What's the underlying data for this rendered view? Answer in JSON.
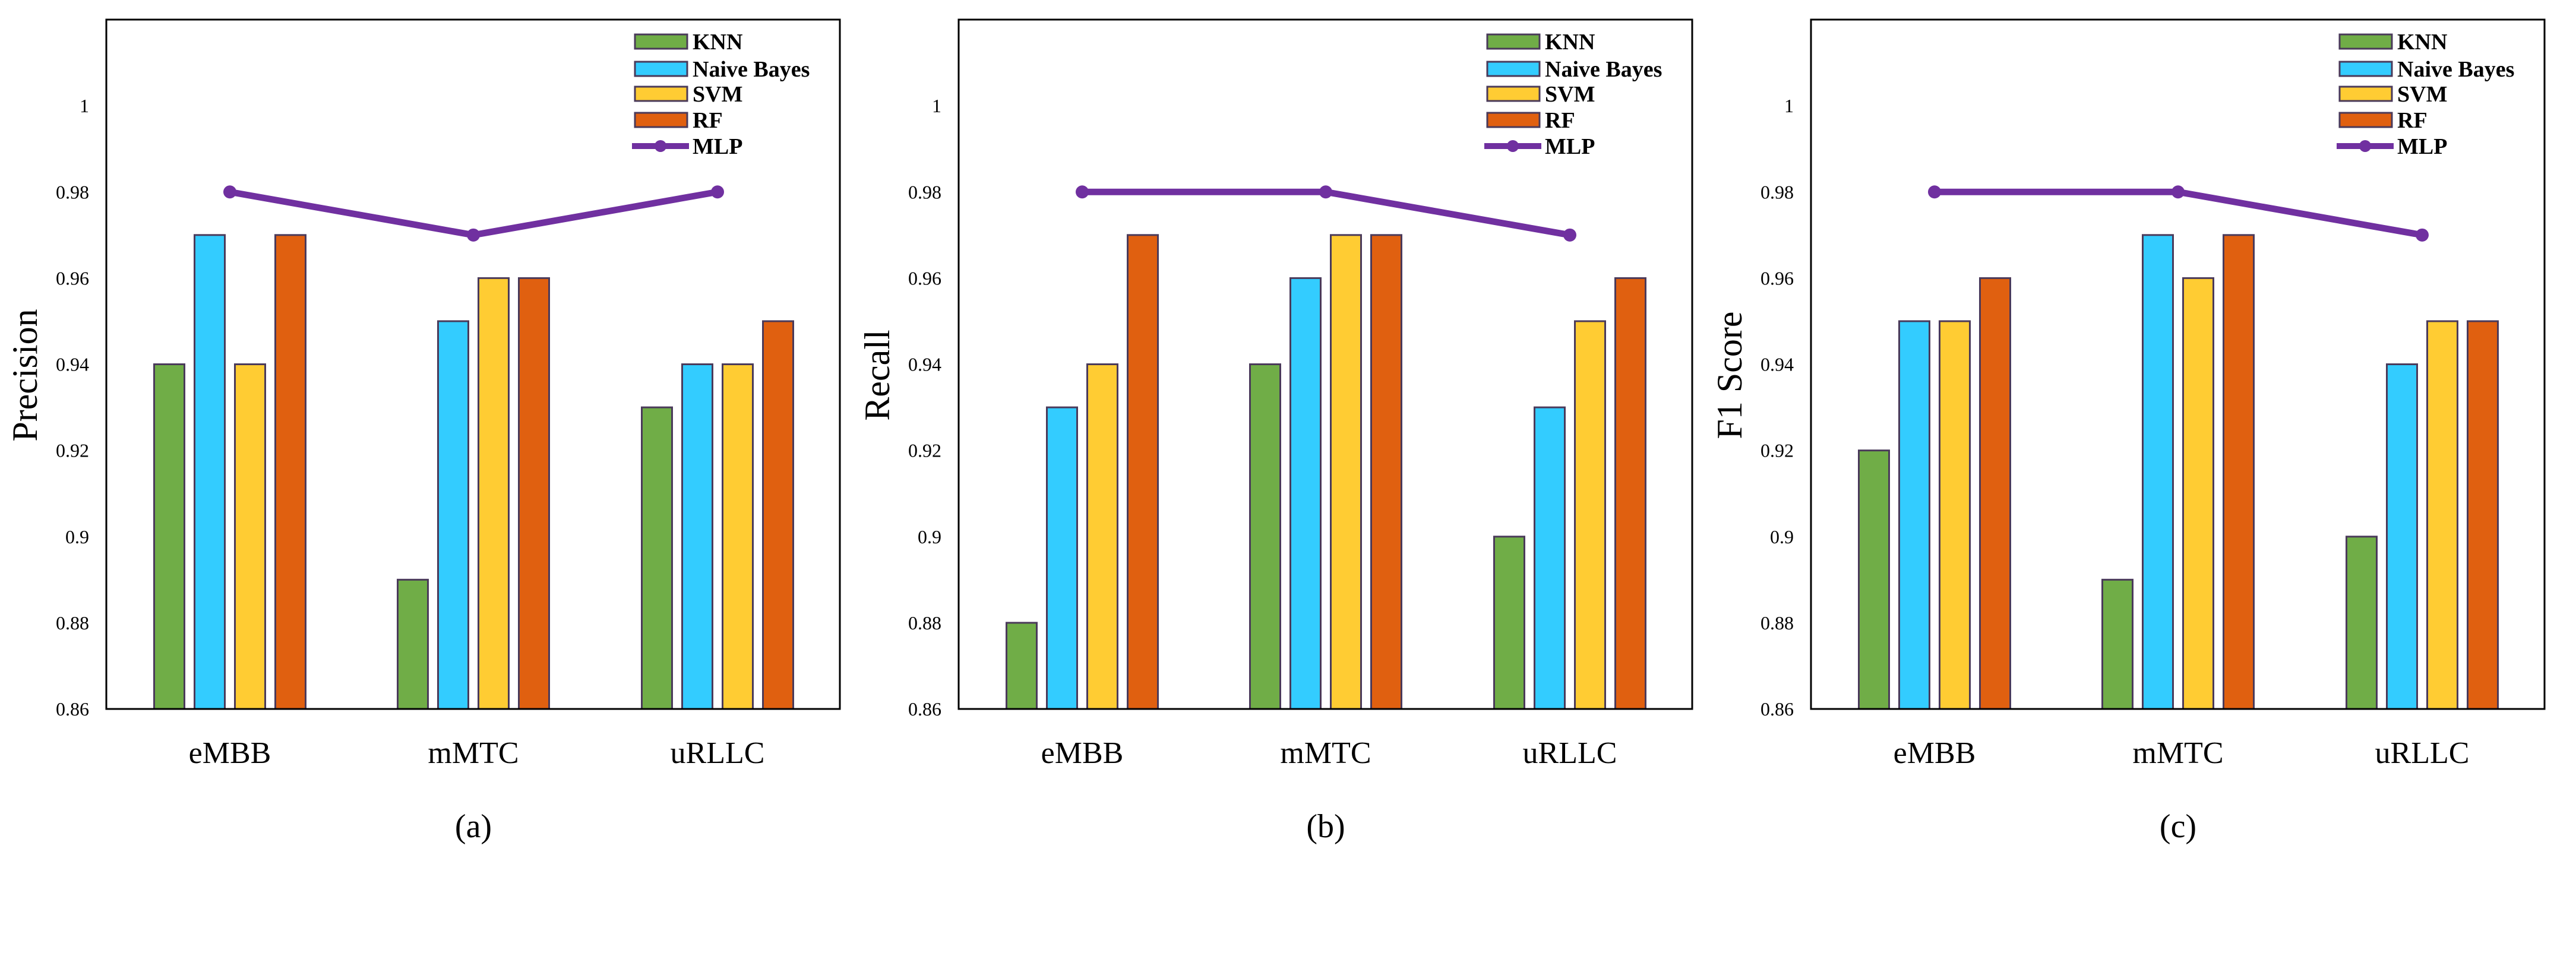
{
  "chart_data": [
    {
      "type": "bar",
      "panel_label": "(a)",
      "ylabel": "Precision",
      "xlabel": "",
      "ylim": [
        0.86,
        1.02
      ],
      "yticks": [
        "0.86",
        "0.88",
        "0.9",
        "0.92",
        "0.94",
        "0.96",
        "0.98",
        "1"
      ],
      "categories": [
        "eMBB",
        "mMTC",
        "uRLLC"
      ],
      "series": [
        {
          "name": "KNN",
          "kind": "bar",
          "values": [
            0.94,
            0.89,
            0.93
          ]
        },
        {
          "name": "Naive Bayes",
          "kind": "bar",
          "values": [
            0.97,
            0.95,
            0.94
          ]
        },
        {
          "name": "SVM",
          "kind": "bar",
          "values": [
            0.94,
            0.96,
            0.94
          ]
        },
        {
          "name": "RF",
          "kind": "bar",
          "values": [
            0.97,
            0.96,
            0.95
          ]
        },
        {
          "name": "MLP",
          "kind": "line",
          "values": [
            0.98,
            0.97,
            0.98
          ]
        }
      ],
      "legend": "top-right",
      "grid": false
    },
    {
      "type": "bar",
      "panel_label": "(b)",
      "ylabel": "Recall",
      "xlabel": "",
      "ylim": [
        0.86,
        1.02
      ],
      "yticks": [
        "0.86",
        "0.88",
        "0.9",
        "0.92",
        "0.94",
        "0.96",
        "0.98",
        "1"
      ],
      "categories": [
        "eMBB",
        "mMTC",
        "uRLLC"
      ],
      "series": [
        {
          "name": "KNN",
          "kind": "bar",
          "values": [
            0.88,
            0.94,
            0.9
          ]
        },
        {
          "name": "Naive Bayes",
          "kind": "bar",
          "values": [
            0.93,
            0.96,
            0.93
          ]
        },
        {
          "name": "SVM",
          "kind": "bar",
          "values": [
            0.94,
            0.97,
            0.95
          ]
        },
        {
          "name": "RF",
          "kind": "bar",
          "values": [
            0.97,
            0.97,
            0.96
          ]
        },
        {
          "name": "MLP",
          "kind": "line",
          "values": [
            0.98,
            0.98,
            0.97
          ]
        }
      ],
      "legend": "top-right",
      "grid": false
    },
    {
      "type": "bar",
      "panel_label": "(c)",
      "ylabel": "F1 Score",
      "xlabel": "",
      "ylim": [
        0.86,
        1.02
      ],
      "yticks": [
        "0.86",
        "0.88",
        "0.9",
        "0.92",
        "0.94",
        "0.96",
        "0.98",
        "1"
      ],
      "categories": [
        "eMBB",
        "mMTC",
        "uRLLC"
      ],
      "series": [
        {
          "name": "KNN",
          "kind": "bar",
          "values": [
            0.92,
            0.89,
            0.9
          ]
        },
        {
          "name": "Naive Bayes",
          "kind": "bar",
          "values": [
            0.95,
            0.97,
            0.94
          ]
        },
        {
          "name": "SVM",
          "kind": "bar",
          "values": [
            0.95,
            0.96,
            0.95
          ]
        },
        {
          "name": "RF",
          "kind": "bar",
          "values": [
            0.96,
            0.97,
            0.95
          ]
        },
        {
          "name": "MLP",
          "kind": "line",
          "values": [
            0.98,
            0.98,
            0.97
          ]
        }
      ],
      "legend": "top-right",
      "grid": false
    }
  ],
  "colors": {
    "KNN": "#70AD47",
    "Naive Bayes": "#33CCFF",
    "SVM": "#FFCC33",
    "RF": "#E06010",
    "MLP": "#7030A0",
    "bar_border": "#4a3a5a"
  }
}
